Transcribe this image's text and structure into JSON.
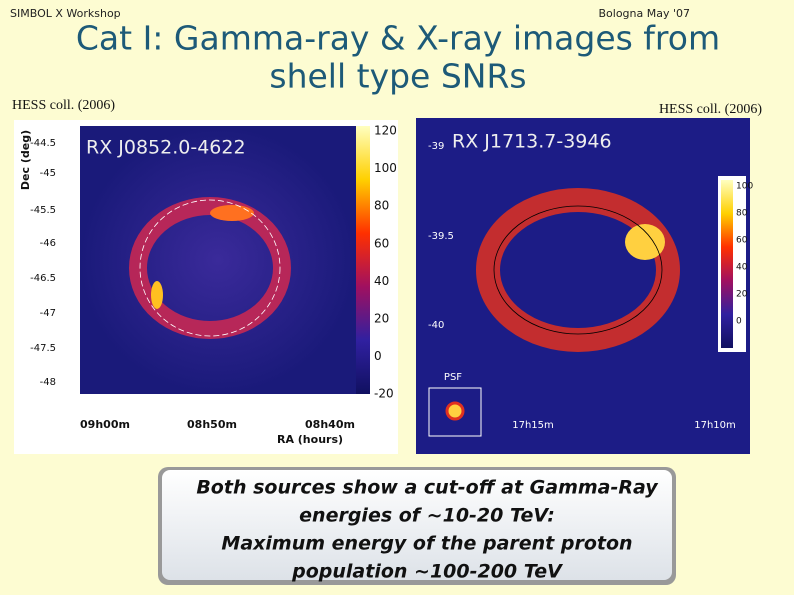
{
  "header": {
    "left_note": "SIMBOL X Workshop",
    "right_note": "Bologna May '07",
    "title_lines": [
      "Cat I: Gamma-ray & X-ray images from",
      "shell type SNRs"
    ]
  },
  "credits": [
    "HESS coll. (2006)",
    "HESS coll. (2006)"
  ],
  "left_image": {
    "label": "RX J0852.0-4622",
    "y_axis_label": "Dec (deg)",
    "y_ticks": [
      "-44.5",
      "-45",
      "-45.5",
      "-46",
      "-46.5",
      "-47",
      "-47.5",
      "-48"
    ],
    "x_ticks": [
      "09h00m",
      "08h50m",
      "08h40m"
    ],
    "x_axis_label": "RA (hours)",
    "colorbar_ticks": [
      "120",
      "100",
      "80",
      "60",
      "40",
      "20",
      "0",
      "-20"
    ]
  },
  "right_image": {
    "label": "RX J1713.7-3946",
    "y_ticks": [
      "-39",
      "-39.5",
      "-40"
    ],
    "x_ticks": [
      "17h15m",
      "17h10m"
    ],
    "psf_label": "PSF",
    "colorbar_ticks": [
      "100",
      "80",
      "60",
      "40",
      "20",
      "0"
    ]
  },
  "callout": {
    "lines": [
      "Both sources show a cut-off at Gamma-Ray",
      "energies of ~10-20 TeV:",
      "Maximum energy of the parent proton",
      "population ~100-200 TeV"
    ]
  }
}
